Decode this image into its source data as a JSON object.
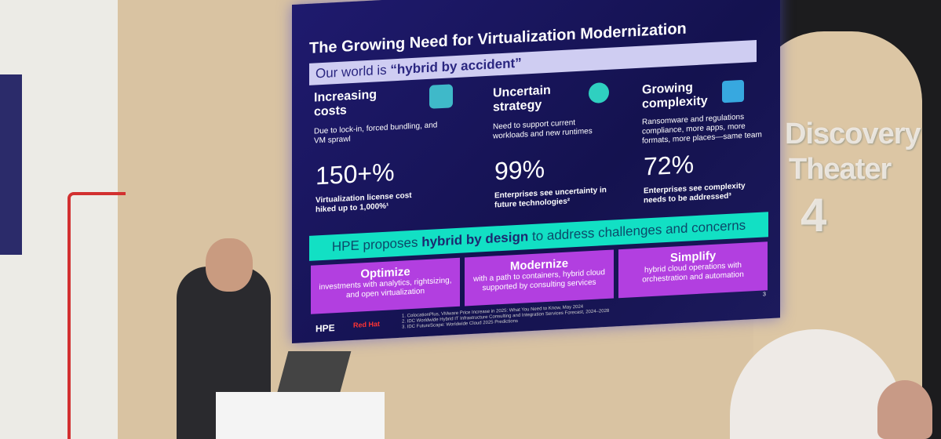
{
  "slide": {
    "title": "The Growing Need for Virtualization Modernization",
    "subtitle_prefix": "Our world is",
    "subtitle_emphasis": "“hybrid by accident”",
    "columns": [
      {
        "heading": "Increasing costs",
        "description": "Due to lock-in, forced bundling, and VM sprawl",
        "stat": "150+%",
        "caption": "Virtualization license cost hiked up to 1,000%¹"
      },
      {
        "heading": "Uncertain strategy",
        "description": "Need to support current workloads and new runtimes",
        "stat": "99%",
        "caption": "Enterprises see uncertainty in future technologies²"
      },
      {
        "heading": "Growing complexity",
        "description": "Ransomware and regulations compliance, more apps, more formats, more places—same team",
        "stat": "72%",
        "caption": "Enterprises see complexity needs to be addressed³"
      }
    ],
    "banner": {
      "prefix": "HPE proposes",
      "emphasis": "hybrid by design",
      "suffix": "to address challenges and concerns"
    },
    "actions": [
      {
        "title": "Optimize",
        "description": "investments with analytics, rightsizing, and open virtualization"
      },
      {
        "title": "Modernize",
        "description": "with a path to containers, hybrid cloud supported by consulting services"
      },
      {
        "title": "Simplify",
        "description": "hybrid cloud operations with orchestration and automation"
      }
    ],
    "logos": [
      "HPE",
      "Red Hat"
    ],
    "footnotes": [
      "1. ColocationPlus, VMware Price Increase in 2025: What You Need to Know, May 2024",
      "2. IDC Worldwide Hybrid IT Infrastructure Consulting and Integration Services Forecast, 2024–2028",
      "3. IDC FutureScape: Worldwide Cloud 2025 Predictions"
    ],
    "page_number": "3"
  },
  "stage_sign": {
    "line1": "Discovery",
    "line2": "Theater",
    "line3": "4"
  }
}
